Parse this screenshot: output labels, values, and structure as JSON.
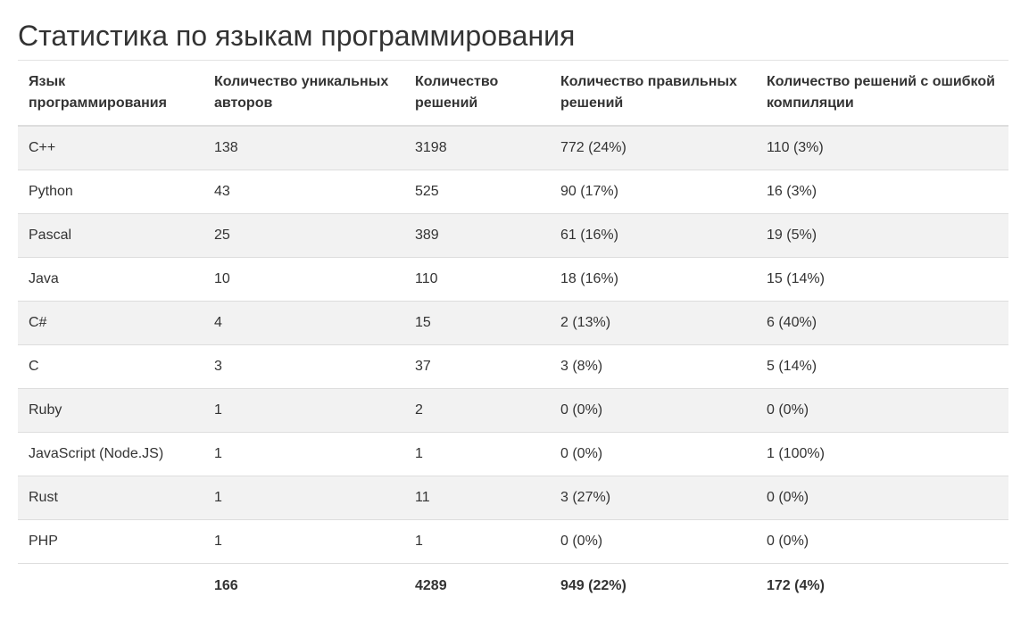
{
  "page_title": "Статистика по языкам программирования",
  "table": {
    "headers": [
      "Язык программирования",
      "Количество уникальных авторов",
      "Количество решений",
      "Количество правильных решений",
      "Количество решений с ошибкой компиляции"
    ],
    "rows": [
      [
        "C++",
        "138",
        "3198",
        "772 (24%)",
        "110 (3%)"
      ],
      [
        "Python",
        "43",
        "525",
        "90 (17%)",
        "16 (3%)"
      ],
      [
        "Pascal",
        "25",
        "389",
        "61 (16%)",
        "19 (5%)"
      ],
      [
        "Java",
        "10",
        "110",
        "18 (16%)",
        "15 (14%)"
      ],
      [
        "C#",
        "4",
        "15",
        "2 (13%)",
        "6 (40%)"
      ],
      [
        "C",
        "3",
        "37",
        "3 (8%)",
        "5 (14%)"
      ],
      [
        "Ruby",
        "1",
        "2",
        "0 (0%)",
        "0 (0%)"
      ],
      [
        "JavaScript (Node.JS)",
        "1",
        "1",
        "0 (0%)",
        "1 (100%)"
      ],
      [
        "Rust",
        "1",
        "11",
        "3 (27%)",
        "0 (0%)"
      ],
      [
        "PHP",
        "1",
        "1",
        "0 (0%)",
        "0 (0%)"
      ]
    ],
    "totals": [
      "",
      "166",
      "4289",
      "949 (22%)",
      "172 (4%)"
    ]
  },
  "colors": {
    "text": "#333333",
    "stripe": "#f2f2f2",
    "border": "#dddddd"
  }
}
